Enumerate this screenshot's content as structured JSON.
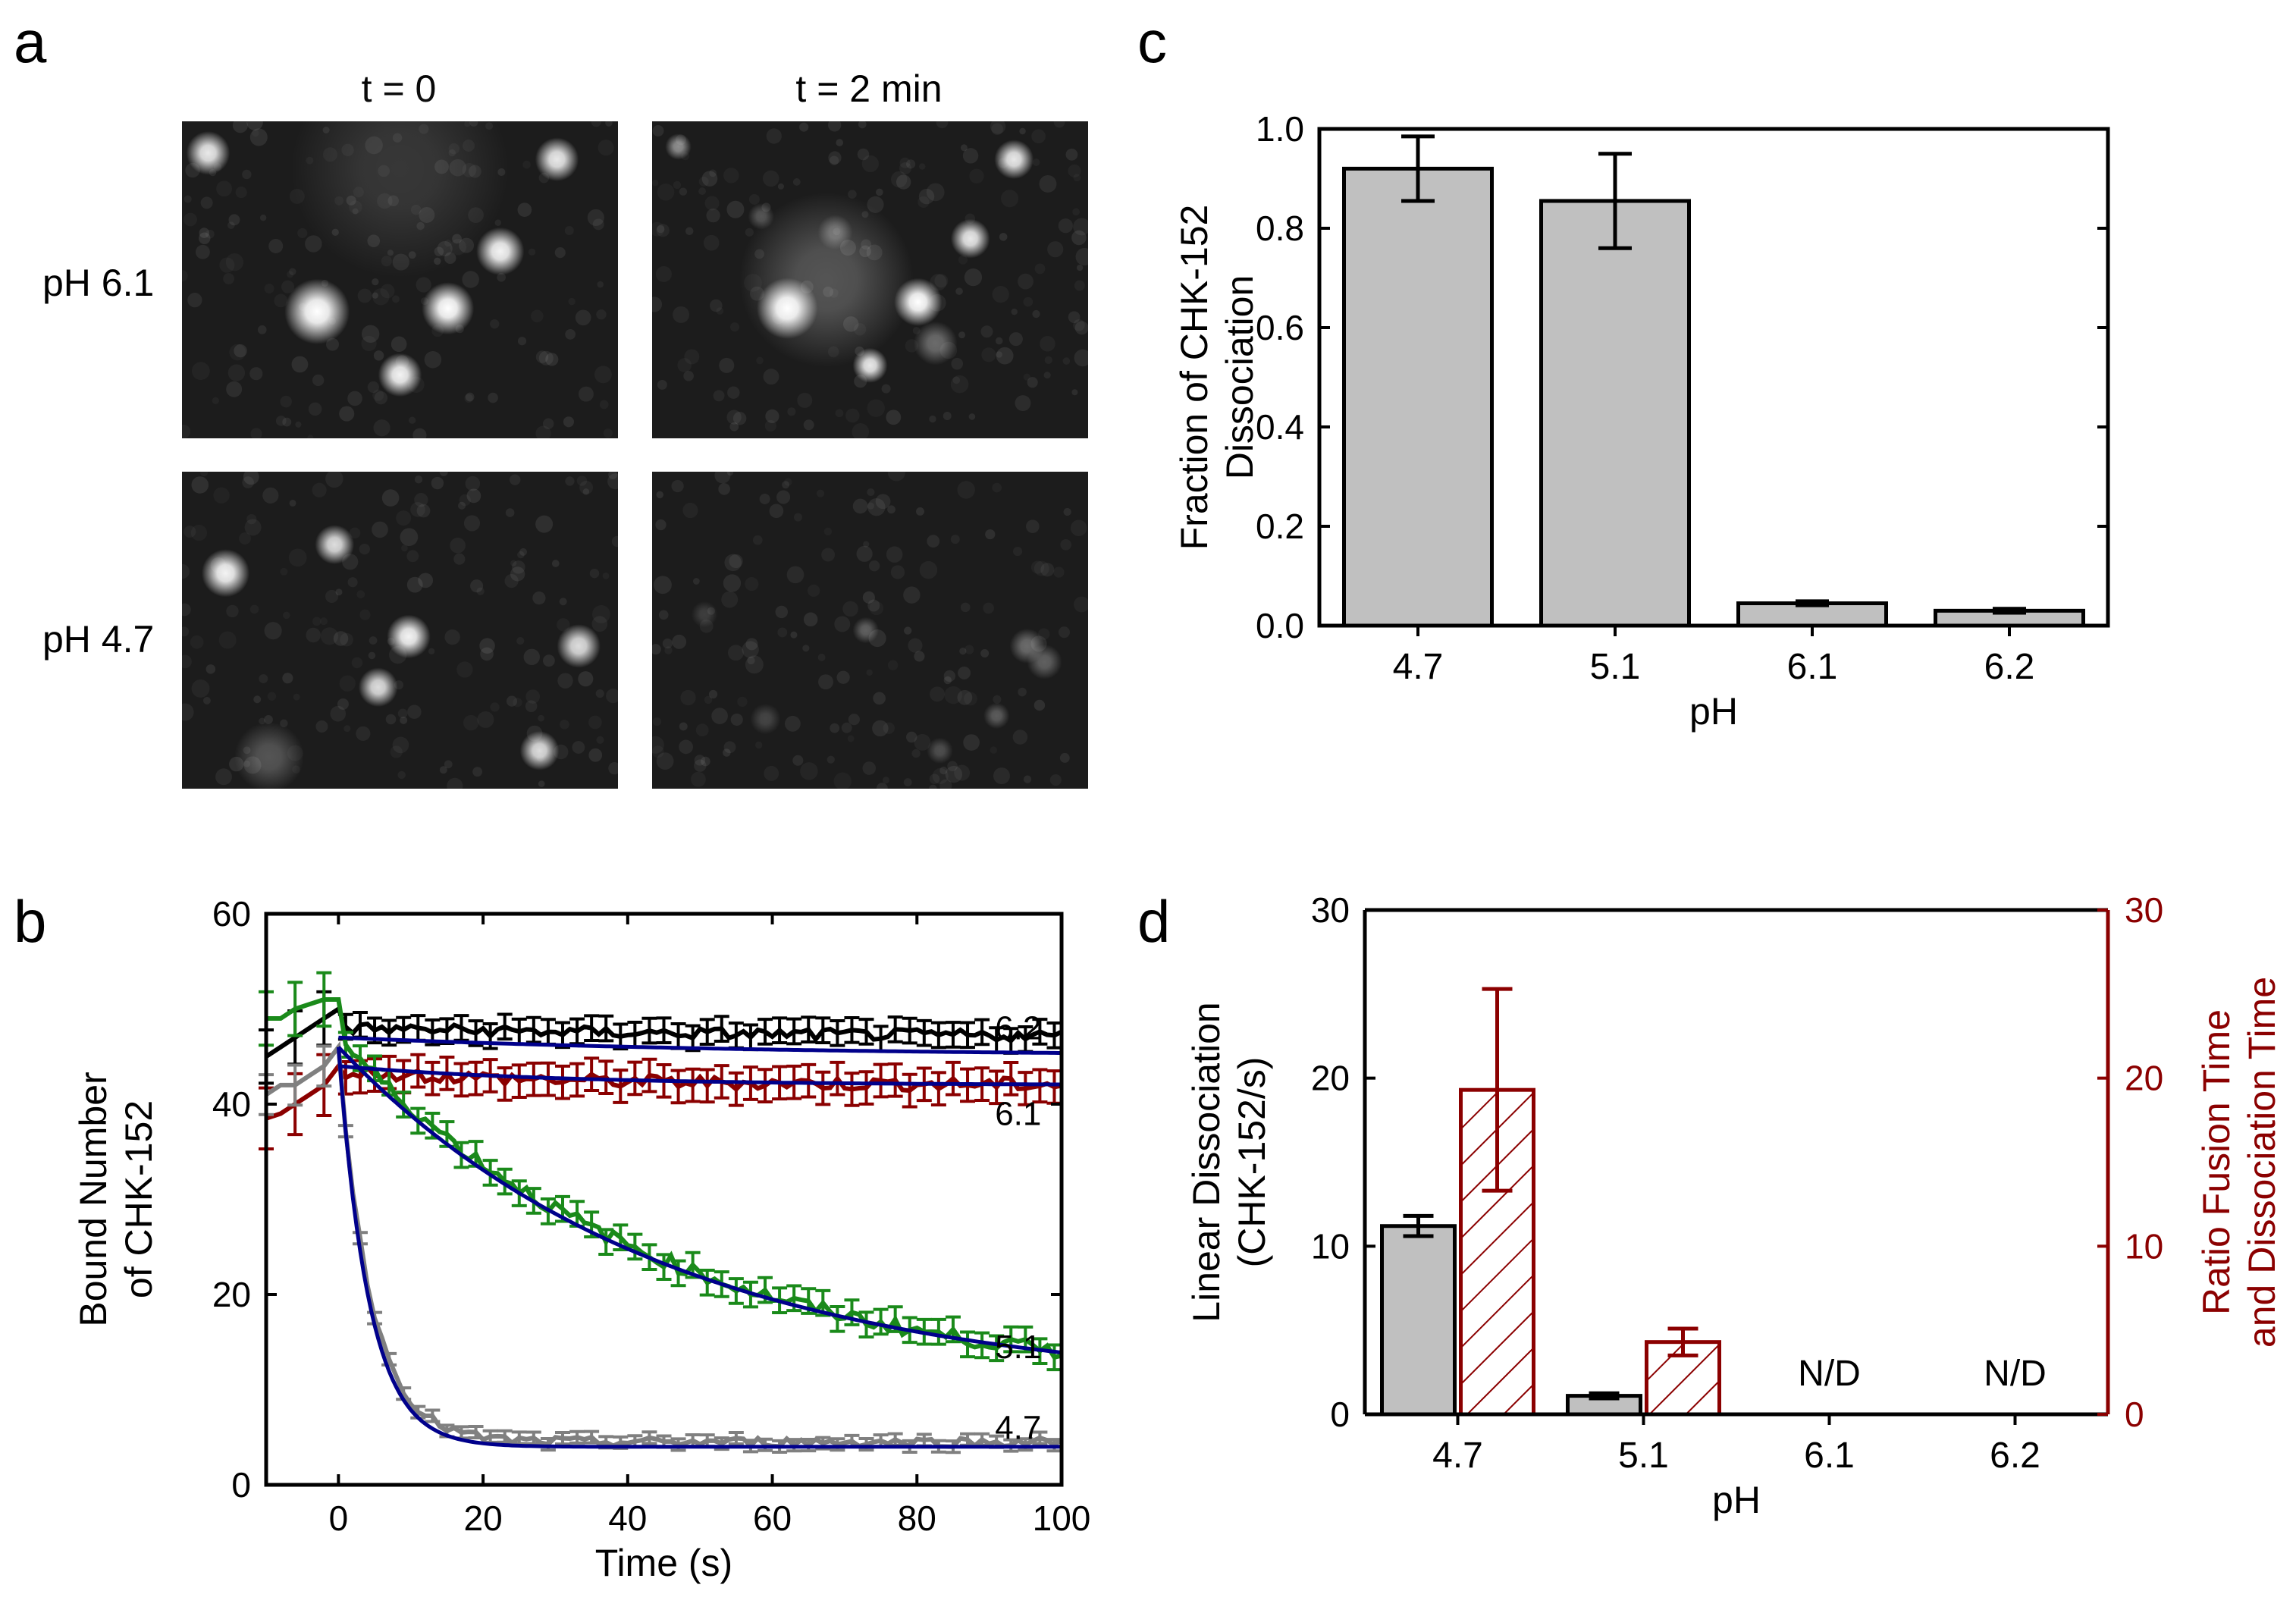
{
  "panel_labels": {
    "a": "a",
    "b": "b",
    "c": "c",
    "d": "d"
  },
  "panel_a": {
    "column_labels": [
      "t = 0",
      "t = 2 min"
    ],
    "row_labels": [
      "pH 6.1",
      "pH 4.7"
    ],
    "images": [
      {
        "row": "pH 6.1",
        "time": "t = 0",
        "spots": [
          [
            0.06,
            0.1,
            0.05,
            0.9
          ],
          [
            0.86,
            0.12,
            0.05,
            0.9
          ],
          [
            0.73,
            0.41,
            0.055,
            0.95
          ],
          [
            0.31,
            0.6,
            0.075,
            1
          ],
          [
            0.61,
            0.59,
            0.06,
            1
          ],
          [
            0.5,
            0.8,
            0.05,
            0.95
          ],
          [
            0.5,
            0.15,
            0.25,
            0.12
          ]
        ]
      },
      {
        "row": "pH 6.1",
        "time": "t = 2 min",
        "spots": [
          [
            0.06,
            0.08,
            0.03,
            0.5
          ],
          [
            0.83,
            0.12,
            0.045,
            0.9
          ],
          [
            0.73,
            0.37,
            0.045,
            0.9
          ],
          [
            0.31,
            0.59,
            0.07,
            1
          ],
          [
            0.61,
            0.57,
            0.055,
            1
          ],
          [
            0.5,
            0.77,
            0.04,
            0.9
          ],
          [
            0.4,
            0.5,
            0.2,
            0.25
          ],
          [
            0.65,
            0.7,
            0.05,
            0.35
          ],
          [
            0.42,
            0.35,
            0.04,
            0.3
          ],
          [
            0.25,
            0.3,
            0.03,
            0.25
          ]
        ]
      },
      {
        "row": "pH 4.7",
        "time": "t = 0",
        "spots": [
          [
            0.1,
            0.32,
            0.055,
            0.95
          ],
          [
            0.35,
            0.23,
            0.045,
            0.85
          ],
          [
            0.52,
            0.52,
            0.05,
            0.95
          ],
          [
            0.45,
            0.68,
            0.045,
            0.85
          ],
          [
            0.91,
            0.55,
            0.05,
            0.85
          ],
          [
            0.82,
            0.88,
            0.045,
            0.85
          ],
          [
            0.2,
            0.9,
            0.08,
            0.25
          ]
        ]
      },
      {
        "row": "pH 4.7",
        "time": "t = 2 min",
        "spots": [
          [
            0.49,
            0.5,
            0.03,
            0.3
          ],
          [
            0.86,
            0.55,
            0.04,
            0.35
          ],
          [
            0.9,
            0.6,
            0.04,
            0.3
          ],
          [
            0.79,
            0.77,
            0.03,
            0.28
          ],
          [
            0.26,
            0.78,
            0.035,
            0.18
          ],
          [
            0.12,
            0.45,
            0.03,
            0.15
          ],
          [
            0.66,
            0.88,
            0.03,
            0.22
          ]
        ]
      }
    ]
  },
  "chart_data": [
    {
      "panel": "b",
      "type": "line",
      "xlabel": "Time (s)",
      "ylabel": [
        "Bound Number",
        "of CHK-152"
      ],
      "xlim": [
        -10,
        100
      ],
      "ylim": [
        0,
        60
      ],
      "xticks": [
        0,
        20,
        40,
        60,
        80,
        100
      ],
      "yticks": [
        0,
        20,
        40,
        60
      ],
      "series": [
        {
          "name": "6.2",
          "color": "#000000",
          "pre": [
            [
              -10,
              45
            ],
            [
              -8,
              46
            ],
            [
              -6,
              47
            ],
            [
              -4,
              48
            ],
            [
              -2,
              49
            ],
            [
              0,
              50
            ]
          ],
          "plateau": 47,
          "decay": 1.0,
          "tau": 60,
          "noise": 0.6,
          "err": 1.3
        },
        {
          "name": "6.1",
          "color": "#8b0000",
          "pre": [
            [
              -10,
              38.5
            ],
            [
              -8,
              39
            ],
            [
              -6,
              40
            ],
            [
              -4,
              41
            ],
            [
              -2,
              42
            ],
            [
              0,
              44
            ]
          ],
          "plateau": 42,
          "decay": 1.5,
          "tau": 30,
          "noise": 0.7,
          "err": 1.7
        },
        {
          "name": "5.1",
          "color": "#1a8a1a",
          "pre": [
            [
              -10,
              49
            ],
            [
              -8,
              49
            ],
            [
              -6,
              50
            ],
            [
              -4,
              50.5
            ],
            [
              -2,
              51
            ],
            [
              0,
              51
            ]
          ],
          "plateau": 10,
          "decay": 37,
          "tau": 45,
          "noise": 0.8,
          "err": 1.3
        },
        {
          "name": "4.7",
          "color": "#808080",
          "pre": [
            [
              -10,
              41
            ],
            [
              -8,
              42
            ],
            [
              -6,
              42
            ],
            [
              -4,
              43
            ],
            [
              -2,
              44
            ],
            [
              0,
              46
            ]
          ],
          "plateau": 4.5,
          "decay": 41,
          "tau": 4.5,
          "noise": 0.5,
          "err": 0.6
        }
      ],
      "fits": [
        {
          "series": "6.2",
          "color": "#00008b",
          "start": 47,
          "plateau": 45,
          "tau": 60
        },
        {
          "series": "6.1",
          "color": "#00008b",
          "start": 44,
          "plateau": 42,
          "tau": 30
        },
        {
          "series": "5.1",
          "color": "#00008b",
          "start": 46,
          "plateau": 10,
          "tau": 45
        },
        {
          "series": "4.7",
          "color": "#00008b",
          "start": 46,
          "plateau": 4,
          "tau": 4.2
        }
      ],
      "annotations": [
        {
          "text": "6.2",
          "x": 94,
          "y": 48
        },
        {
          "text": "6.1",
          "x": 94,
          "y": 39
        },
        {
          "text": "5.1",
          "x": 94,
          "y": 14.5
        },
        {
          "text": "4.7",
          "x": 94,
          "y": 6
        }
      ]
    },
    {
      "panel": "c",
      "type": "bar",
      "categories": [
        "4.7",
        "5.1",
        "6.1",
        "6.2"
      ],
      "values": [
        0.92,
        0.855,
        0.045,
        0.03
      ],
      "errors": [
        0.065,
        0.095,
        0.004,
        0.004
      ],
      "bar_color": "#c0c0c0",
      "xlabel": "pH",
      "ylabel": [
        "Fraction of CHK-152",
        "Dissociation"
      ],
      "ylim": [
        0,
        1.0
      ],
      "yticks": [
        0.0,
        0.2,
        0.4,
        0.6,
        0.8,
        1.0
      ]
    },
    {
      "panel": "d",
      "type": "bar",
      "categories": [
        "4.7",
        "5.1",
        "6.1",
        "6.2"
      ],
      "series": [
        {
          "name": "Linear Dissociation",
          "axis": "left",
          "values": [
            11.2,
            1.1,
            null,
            null
          ],
          "errors": [
            0.6,
            0.15,
            null,
            null
          ],
          "color": "#c0c0c0",
          "pattern": "solid"
        },
        {
          "name": "Ratio Fusion Time and Dissociation Time",
          "axis": "right",
          "values": [
            19.3,
            4.3,
            null,
            null
          ],
          "errors": [
            6.0,
            0.8,
            null,
            null
          ],
          "color": "#8b0000",
          "pattern": "hatched"
        }
      ],
      "na_labels": {
        "6.1": "N/D",
        "6.2": "N/D"
      },
      "xlabel": "pH",
      "ylabel_left": [
        "Linear Dissociation",
        "(CHK-152/s)"
      ],
      "ylabel_right": [
        "Ratio Fusion Time",
        "and Dissociation Time"
      ],
      "ylim_left": [
        0,
        30
      ],
      "ylim_right": [
        0,
        30
      ],
      "yticks": [
        0,
        10,
        20,
        30
      ]
    }
  ]
}
